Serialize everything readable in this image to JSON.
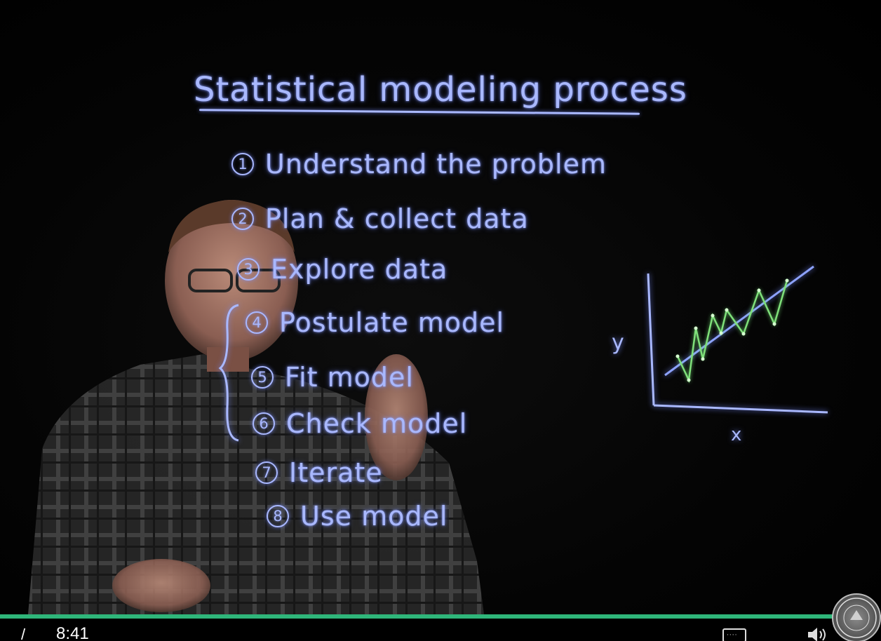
{
  "video": {
    "board": {
      "title": "Statistical modeling process",
      "steps": [
        {
          "num": "1",
          "label": "Understand the problem"
        },
        {
          "num": "2",
          "label": "Plan & collect data"
        },
        {
          "num": "3",
          "label": "Explore data"
        },
        {
          "num": "4",
          "label": "Postulate model"
        },
        {
          "num": "5",
          "label": "Fit model"
        },
        {
          "num": "6",
          "label": "Check model"
        },
        {
          "num": "7",
          "label": "Iterate"
        },
        {
          "num": "8",
          "label": "Use model"
        }
      ],
      "sketch": {
        "y_label": "y",
        "x_label": "x"
      }
    },
    "colors": {
      "ink": "#a9b8ff",
      "data_line": "#7fe07a",
      "progress": "#2fb67a"
    }
  },
  "controls": {
    "separator": "/",
    "time": "8:41",
    "progress_fraction": 0.998,
    "cc_icon": "captions-icon",
    "volume_icon": "volume-icon"
  },
  "branding": {
    "seal_icon": "university-seal-icon"
  }
}
